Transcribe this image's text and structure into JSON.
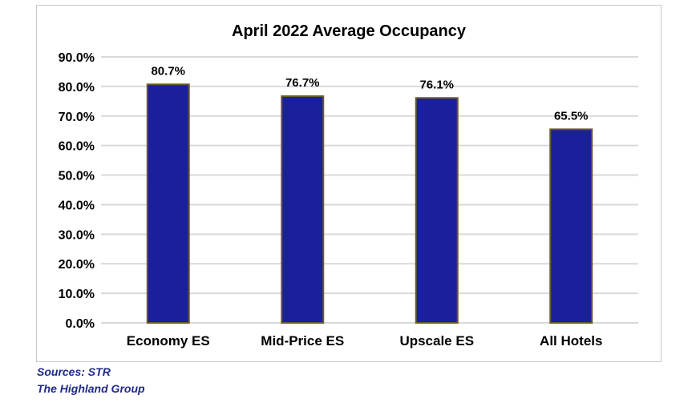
{
  "colors": {
    "bar_fill": "#1a1f9c",
    "bar_stroke": "#6b5a2a",
    "grid": "#d9d9d9",
    "text": "#000000",
    "source_text": "#1f2a8a"
  },
  "chart_data": {
    "type": "bar",
    "title": "April 2022 Average Occupancy",
    "xlabel": "",
    "ylabel": "",
    "categories": [
      "Economy ES",
      "Mid-Price ES",
      "Upscale ES",
      "All Hotels"
    ],
    "values": [
      80.7,
      76.7,
      76.1,
      65.5
    ],
    "data_labels": [
      "80.7%",
      "76.7%",
      "76.1%",
      "65.5%"
    ],
    "ylim": [
      0,
      90
    ],
    "yticks": [
      0,
      10,
      20,
      30,
      40,
      50,
      60,
      70,
      80,
      90
    ],
    "ytick_labels": [
      "0.0%",
      "10.0%",
      "20.0%",
      "30.0%",
      "40.0%",
      "50.0%",
      "60.0%",
      "70.0%",
      "80.0%",
      "90.0%"
    ],
    "grid": true,
    "legend": "none"
  },
  "sources": {
    "line1": "Sources: STR",
    "line2": "The Highland Group"
  }
}
